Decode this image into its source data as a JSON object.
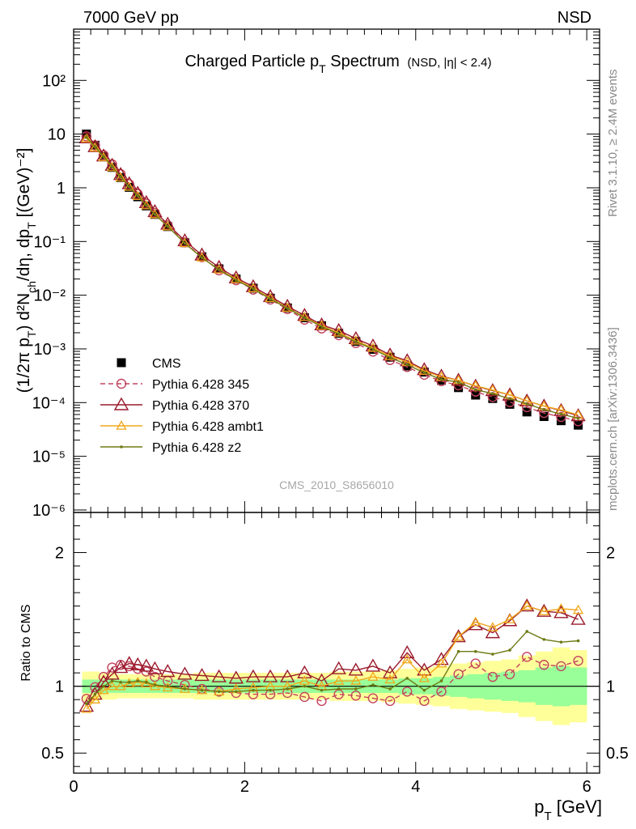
{
  "header": {
    "left": "7000 GeV pp",
    "right": "NSD"
  },
  "side_labels": {
    "rivet": "Rivet 3.1.10, ≥ 2.4M events",
    "mcplots": "mcplots.cern.ch [arXiv:1306.3436]"
  },
  "watermark": "CMS_2010_S8656010",
  "colors": {
    "s345": "#c3445f",
    "s370": "#9a1a2b",
    "ambt1": "#f0a81c",
    "z2": "#6e7a14",
    "band_inner": "#99ff99",
    "band_outer": "#ffff99"
  },
  "chart_data": [
    {
      "type": "line",
      "title": "Charged Particle p_T Spectrum",
      "title_suffix": "(NSD, |η| < 2.4)",
      "xlabel": "",
      "ylabel": "(1/2π p_T) d²N_ch/dη, dp_T [(GeV)⁻²]",
      "yscale": "log",
      "xlim": [
        0,
        6.15
      ],
      "ylim": [
        9e-07,
        900
      ],
      "x_ticks": [
        0,
        2,
        4,
        6
      ],
      "y_tick_labels": [
        "10⁻⁶",
        "10⁻⁵",
        "10⁻⁴",
        "10⁻³",
        "10⁻²",
        "10⁻¹",
        "1",
        "10",
        "10²"
      ],
      "legend_position": "lower-left",
      "x": [
        0.15,
        0.25,
        0.35,
        0.45,
        0.55,
        0.65,
        0.75,
        0.85,
        0.95,
        1.1,
        1.3,
        1.5,
        1.7,
        1.9,
        2.1,
        2.3,
        2.5,
        2.7,
        2.9,
        3.1,
        3.3,
        3.5,
        3.7,
        3.9,
        4.1,
        4.3,
        4.5,
        4.7,
        4.9,
        5.1,
        5.3,
        5.5,
        5.7,
        5.9
      ],
      "data": {
        "name": "CMS",
        "values": [
          10,
          6.2,
          3.8,
          2.4,
          1.55,
          1.02,
          0.68,
          0.46,
          0.32,
          0.19,
          0.095,
          0.052,
          0.031,
          0.02,
          0.0135,
          0.0088,
          0.0058,
          0.0038,
          0.0027,
          0.00195,
          0.00138,
          0.00098,
          0.0007,
          0.00048,
          0.00037,
          0.00026,
          0.00019,
          0.000138,
          0.000119,
          9.3e-05,
          6.7e-05,
          5.5e-05,
          4.6e-05,
          3.8e-05
        ]
      },
      "series": [
        {
          "name": "Pythia 6.428 345",
          "values": [
            9.06,
            6.16,
            4.07,
            2.74,
            1.8,
            1.17,
            0.77,
            0.51,
            0.34,
            0.2,
            0.096,
            0.051,
            0.029,
            0.019,
            0.0127,
            0.0083,
            0.0055,
            0.0035,
            0.0024,
            0.0018,
            0.00128,
            0.00089,
            0.00062,
            0.00046,
            0.00033,
            0.00025,
            0.00021,
            0.00016,
            0.000127,
            0.000102,
            8.2e-05,
            6.4e-05,
            5.4e-05,
            4.5e-05
          ]
        },
        {
          "name": "Pythia 6.428 370",
          "values": [
            8.5,
            5.83,
            3.91,
            2.62,
            1.77,
            1.19,
            0.79,
            0.53,
            0.36,
            0.21,
            0.103,
            0.056,
            0.033,
            0.021,
            0.0144,
            0.0094,
            0.0062,
            0.0042,
            0.0028,
            0.0022,
            0.00155,
            0.00113,
            0.00077,
            0.0006,
            0.00041,
            0.00031,
            0.00026,
            0.000202,
            0.000167,
            0.000139,
            0.000107,
            8.6e-05,
            7.1e-05,
            5.7e-05
          ]
        },
        {
          "name": "Pythia 6.428 ambt1",
          "values": [
            8.3,
            5.6,
            3.7,
            2.4,
            1.55,
            1.04,
            0.7,
            0.47,
            0.32,
            0.19,
            0.093,
            0.05,
            0.03,
            0.02,
            0.0134,
            0.0088,
            0.0058,
            0.0039,
            0.0027,
            0.002,
            0.00142,
            0.00104,
            0.00073,
            0.00057,
            0.00039,
            0.0003,
            0.00026,
            0.000205,
            0.000171,
            0.000139,
            0.000107,
            8.6e-05,
            7.3e-05,
            5.9e-05
          ]
        },
        {
          "name": "Pythia 6.428 z2",
          "values": [
            8.7,
            5.8,
            3.8,
            2.5,
            1.6,
            1.05,
            0.71,
            0.47,
            0.32,
            0.19,
            0.093,
            0.05,
            0.03,
            0.019,
            0.0131,
            0.0085,
            0.0057,
            0.0038,
            0.0026,
            0.0019,
            0.00136,
            0.00099,
            0.00069,
            0.00051,
            0.00036,
            0.00027,
            0.00024,
            0.000174,
            0.000147,
            0.000118,
            9.5e-05,
            7.4e-05,
            6.1e-05,
            5.1e-05
          ]
        }
      ]
    },
    {
      "type": "line",
      "title": "",
      "xlabel": "p_T [GeV]",
      "ylabel": "Ratio to CMS",
      "xlim": [
        0,
        6.15
      ],
      "ylim": [
        0.35,
        2.3
      ],
      "x_ticks": [
        0,
        2,
        4,
        6
      ],
      "y_ticks": [
        0.5,
        1,
        2
      ],
      "reference_line": 1,
      "band_edges": [
        0.1,
        0.2,
        0.3,
        0.4,
        0.5,
        0.6,
        0.7,
        0.8,
        0.9,
        1.0,
        1.2,
        1.4,
        1.6,
        1.8,
        2.0,
        2.2,
        2.4,
        2.6,
        2.8,
        3.0,
        3.2,
        3.4,
        3.6,
        3.8,
        4.0,
        4.2,
        4.4,
        4.6,
        4.8,
        5.0,
        5.2,
        5.4,
        5.6,
        5.8,
        6.0
      ],
      "band_outer_lo": [
        0.89,
        0.89,
        0.9,
        0.9,
        0.91,
        0.91,
        0.91,
        0.91,
        0.91,
        0.91,
        0.91,
        0.9,
        0.9,
        0.9,
        0.9,
        0.9,
        0.9,
        0.9,
        0.9,
        0.89,
        0.89,
        0.89,
        0.88,
        0.87,
        0.86,
        0.85,
        0.83,
        0.82,
        0.81,
        0.8,
        0.77,
        0.74,
        0.71,
        0.73
      ],
      "band_outer_hi": [
        1.11,
        1.11,
        1.1,
        1.1,
        1.09,
        1.09,
        1.09,
        1.09,
        1.09,
        1.09,
        1.09,
        1.1,
        1.1,
        1.1,
        1.1,
        1.1,
        1.1,
        1.1,
        1.1,
        1.11,
        1.11,
        1.11,
        1.12,
        1.13,
        1.14,
        1.15,
        1.17,
        1.18,
        1.19,
        1.2,
        1.23,
        1.26,
        1.29,
        1.27
      ],
      "band_inner_lo": [
        0.95,
        0.95,
        0.95,
        0.95,
        0.95,
        0.95,
        0.95,
        0.95,
        0.95,
        0.95,
        0.95,
        0.95,
        0.95,
        0.95,
        0.95,
        0.95,
        0.95,
        0.95,
        0.95,
        0.95,
        0.95,
        0.95,
        0.95,
        0.94,
        0.94,
        0.93,
        0.92,
        0.91,
        0.9,
        0.89,
        0.88,
        0.86,
        0.85,
        0.86
      ],
      "band_inner_hi": [
        1.05,
        1.05,
        1.05,
        1.05,
        1.05,
        1.05,
        1.05,
        1.05,
        1.05,
        1.05,
        1.05,
        1.05,
        1.05,
        1.05,
        1.05,
        1.05,
        1.05,
        1.05,
        1.05,
        1.05,
        1.05,
        1.05,
        1.05,
        1.06,
        1.06,
        1.07,
        1.08,
        1.09,
        1.1,
        1.11,
        1.12,
        1.14,
        1.15,
        1.14
      ],
      "x": [
        0.15,
        0.25,
        0.35,
        0.45,
        0.55,
        0.65,
        0.75,
        0.85,
        0.95,
        1.1,
        1.3,
        1.5,
        1.7,
        1.9,
        2.1,
        2.3,
        2.5,
        2.7,
        2.9,
        3.1,
        3.3,
        3.5,
        3.7,
        3.9,
        4.1,
        4.3,
        4.5,
        4.7,
        4.9,
        5.1,
        5.3,
        5.5,
        5.7,
        5.9
      ],
      "series": [
        {
          "name": "Pythia 6.428 345",
          "values": [
            0.906,
            0.993,
            1.07,
            1.14,
            1.16,
            1.15,
            1.13,
            1.11,
            1.07,
            1.04,
            1.01,
            0.98,
            0.96,
            0.95,
            0.94,
            0.94,
            0.95,
            0.92,
            0.89,
            0.94,
            0.93,
            0.91,
            0.89,
            0.96,
            0.89,
            0.96,
            1.09,
            1.17,
            1.07,
            1.09,
            1.22,
            1.16,
            1.15,
            1.19
          ]
        },
        {
          "name": "Pythia 6.428 370",
          "values": [
            0.85,
            0.94,
            1.03,
            1.09,
            1.14,
            1.17,
            1.16,
            1.15,
            1.13,
            1.11,
            1.09,
            1.08,
            1.07,
            1.06,
            1.07,
            1.07,
            1.07,
            1.1,
            1.04,
            1.13,
            1.12,
            1.15,
            1.1,
            1.25,
            1.12,
            1.2,
            1.37,
            1.46,
            1.4,
            1.49,
            1.6,
            1.56,
            1.55,
            1.5
          ]
        },
        {
          "name": "Pythia 6.428 ambt1",
          "values": [
            0.83,
            0.9,
            0.97,
            1.0,
            1.0,
            1.02,
            1.03,
            1.02,
            1.0,
            0.99,
            0.98,
            0.97,
            0.96,
            0.98,
            0.99,
            1.0,
            1.0,
            1.04,
            1.0,
            1.04,
            1.04,
            1.07,
            1.05,
            1.2,
            1.06,
            1.17,
            1.37,
            1.48,
            1.44,
            1.5,
            1.6,
            1.56,
            1.58,
            1.57
          ]
        },
        {
          "name": "Pythia 6.428 z2",
          "values": [
            0.87,
            0.94,
            1.0,
            1.04,
            1.03,
            1.03,
            1.04,
            1.03,
            1.01,
            1.0,
            0.98,
            0.97,
            0.96,
            0.96,
            0.97,
            0.97,
            0.98,
            1.0,
            0.97,
            0.98,
            0.98,
            1.01,
            0.98,
            1.06,
            0.97,
            1.04,
            1.26,
            1.26,
            1.24,
            1.27,
            1.41,
            1.35,
            1.33,
            1.34
          ]
        }
      ]
    }
  ]
}
